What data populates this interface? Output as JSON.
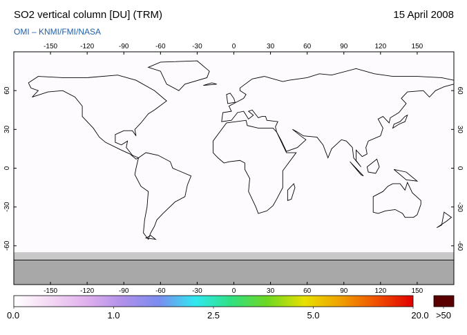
{
  "map": {
    "title": "SO2 vertical column [DU] (TRM)",
    "date": "15 April 2008",
    "subtitle": "OMI  –  KNMI/FMI/NASA",
    "xlim": [
      -180,
      180
    ],
    "xticks": [
      -150,
      -120,
      -90,
      -60,
      -30,
      0,
      30,
      60,
      90,
      120,
      150
    ],
    "ylim": [
      -90,
      90
    ],
    "yticks": [
      -60,
      -30,
      0,
      30,
      60
    ]
  },
  "colorbar": {
    "ticks": [
      {
        "value": 0,
        "label": "0.0"
      },
      {
        "value": 1,
        "label": "1.0"
      },
      {
        "value": 2.5,
        "label": "2.5"
      },
      {
        "value": 5,
        "label": "5.0"
      },
      {
        "value": 20,
        "label": "20.0"
      }
    ],
    "overflow": {
      "value": 50,
      "label": ">50"
    },
    "colors": [
      "#ffffff",
      "#f4d8f4",
      "#e0b0ee",
      "#b090ea",
      "#7a8cf0",
      "#30e8f0",
      "#30e080",
      "#70d820",
      "#e8e000",
      "#f0a000",
      "#f05000",
      "#e00000"
    ],
    "overflow_color": "#5a0000"
  }
}
